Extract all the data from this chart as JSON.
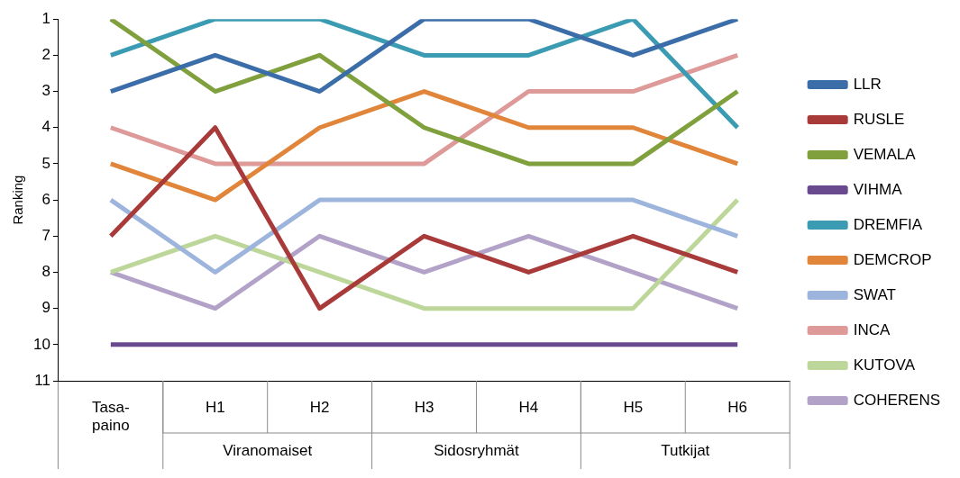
{
  "chart_data": {
    "type": "line",
    "ylabel": "Ranking",
    "categories": [
      "Tasa-paino",
      "H1",
      "H2",
      "H3",
      "H4",
      "H5",
      "H6"
    ],
    "annotations": [
      "Viranomaiset",
      "Sidosryhmät",
      "Tutkijat"
    ],
    "ylim": [
      11,
      1
    ],
    "yticks": [
      1,
      2,
      3,
      4,
      5,
      6,
      7,
      8,
      9,
      10,
      11
    ],
    "grid": false,
    "legend": "right",
    "marker": "none",
    "series": [
      {
        "name": "LLR",
        "color": "#3b6ea8",
        "values": [
          3,
          2,
          3,
          1,
          1,
          2,
          1
        ]
      },
      {
        "name": "RUSLE",
        "color": "#a83a3a",
        "values": [
          7,
          4,
          9,
          7,
          8,
          7,
          8
        ]
      },
      {
        "name": "VEMALA",
        "color": "#7fa03c",
        "values": [
          1,
          3,
          2,
          4,
          5,
          5,
          3
        ]
      },
      {
        "name": "VIHMA",
        "color": "#6a4a8e",
        "values": [
          10,
          10,
          10,
          10,
          10,
          10,
          10
        ]
      },
      {
        "name": "DREMFIA",
        "color": "#3a9bb2",
        "values": [
          2,
          1,
          1,
          2,
          2,
          1,
          4
        ]
      },
      {
        "name": "DEMCROP",
        "color": "#e0853a",
        "values": [
          5,
          6,
          4,
          3,
          4,
          4,
          5
        ]
      },
      {
        "name": "SWAT",
        "color": "#9db5dc",
        "values": [
          6,
          8,
          6,
          6,
          6,
          6,
          7
        ]
      },
      {
        "name": "INCA",
        "color": "#dd9a98",
        "values": [
          4,
          5,
          5,
          5,
          3,
          3,
          2
        ]
      },
      {
        "name": "KUTOVA",
        "color": "#bdd79a",
        "values": [
          8,
          7,
          8,
          9,
          9,
          9,
          6
        ]
      },
      {
        "name": "COHERENS",
        "color": "#b2a2c8",
        "values": [
          8,
          9,
          7,
          8,
          7,
          8,
          9
        ]
      }
    ]
  }
}
